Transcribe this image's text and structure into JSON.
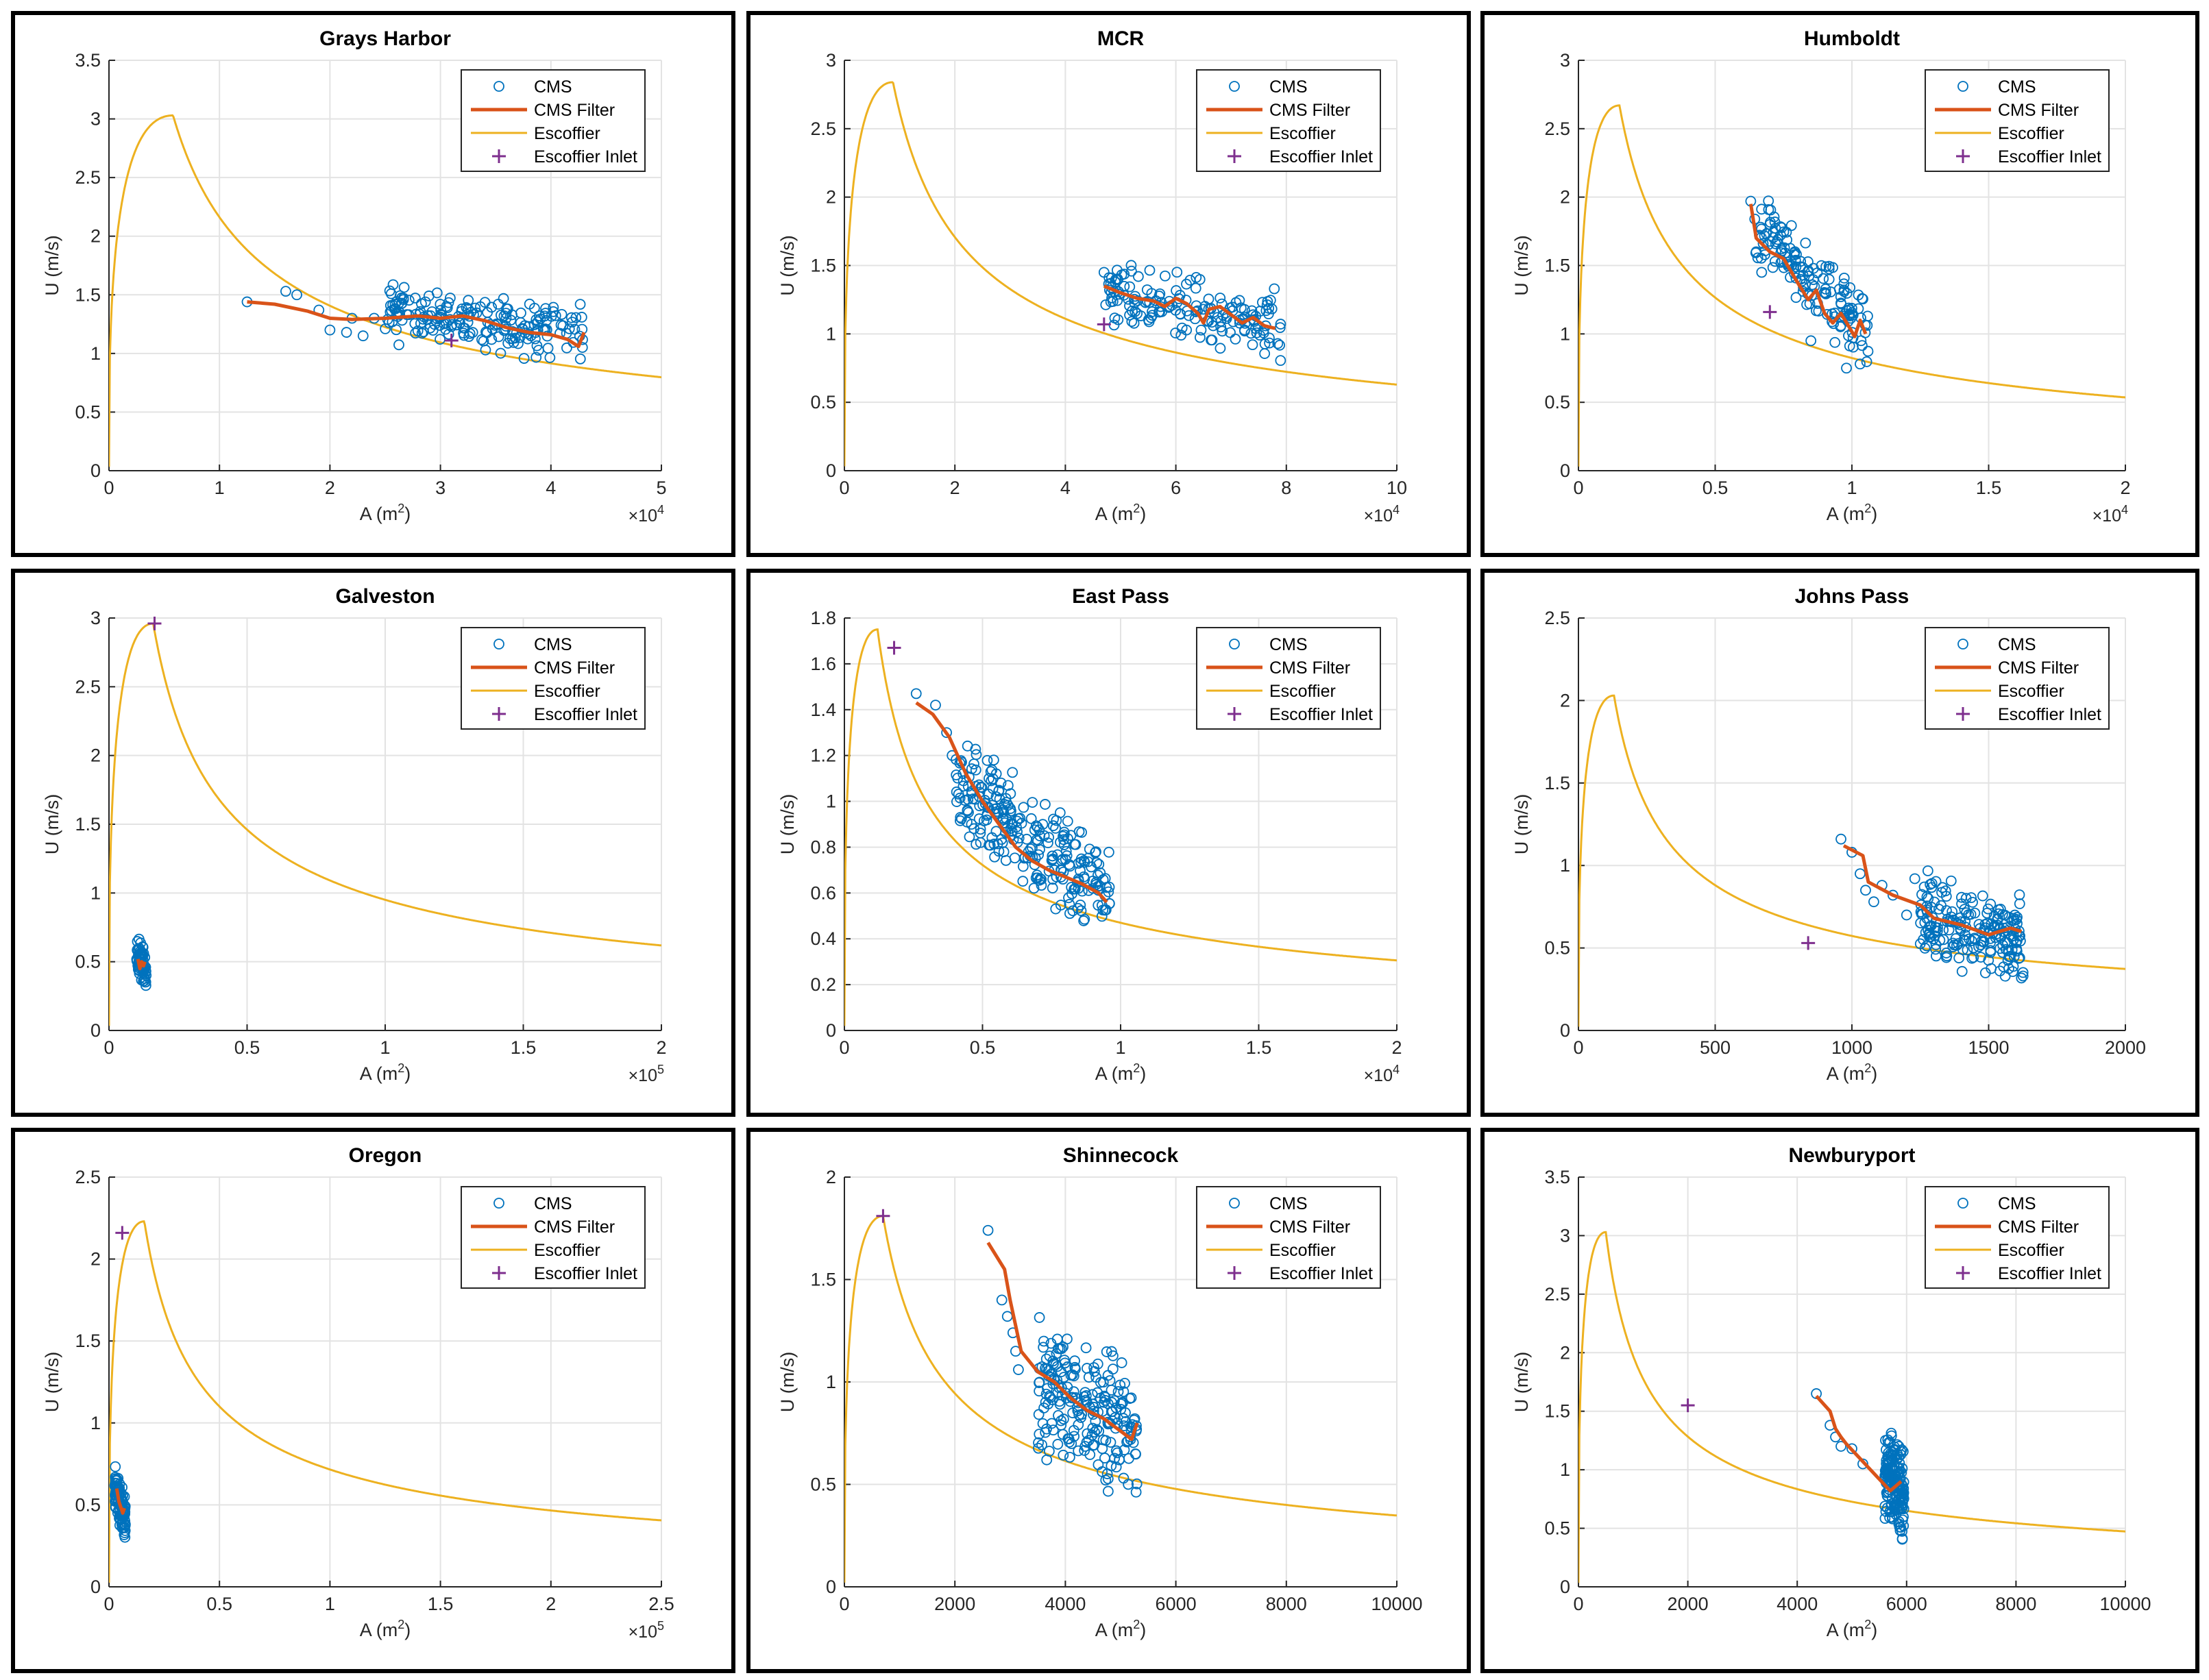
{
  "colors": {
    "cms": "#0072BD",
    "filter": "#D95319",
    "escoffier": "#EDB120",
    "inlet": "#7E2F8E",
    "grid": "#e3e3e3"
  },
  "legend": {
    "labels": [
      "CMS",
      "CMS Filter",
      "Escoffier",
      "Escoffier Inlet"
    ]
  },
  "chart_data": [
    {
      "id": "grays-harbor",
      "type": "scatter",
      "title": "Grays Harbor",
      "xlabel": "A (m",
      "xlabel_sup": "2",
      "ylabel": "U (m/s)",
      "x_exponent": "4",
      "xlim": [
        0,
        50000
      ],
      "ylim": [
        0,
        3.5
      ],
      "x_scale": 10000,
      "xticks": [
        0,
        10000,
        20000,
        30000,
        40000,
        50000
      ],
      "xtick_labels": [
        "0",
        "1",
        "2",
        "3",
        "4",
        "5"
      ],
      "yticks": [
        0,
        0.5,
        1,
        1.5,
        2,
        2.5,
        3,
        3.5
      ],
      "ytick_labels": [
        "0",
        "0.5",
        "1",
        "1.5",
        "2",
        "2.5",
        "3",
        "3.5"
      ],
      "legend_pos": "top-right",
      "escoffier": {
        "amax": 5800,
        "umax": 3.03
      },
      "cloud": {
        "x0": 25000,
        "x1": 43000,
        "y0": 1.35,
        "y1": 1.15,
        "spread": 0.28,
        "n": 200,
        "seed": 11
      },
      "extra_points": [
        [
          12500,
          1.44
        ],
        [
          16000,
          1.53
        ],
        [
          17000,
          1.5
        ],
        [
          19000,
          1.37
        ],
        [
          20000,
          1.2
        ],
        [
          21500,
          1.18
        ],
        [
          23000,
          1.15
        ],
        [
          24000,
          1.3
        ],
        [
          22000,
          1.3
        ]
      ],
      "filter": [
        [
          12500,
          1.44
        ],
        [
          15000,
          1.42
        ],
        [
          18000,
          1.36
        ],
        [
          20000,
          1.3
        ],
        [
          22000,
          1.29
        ],
        [
          25000,
          1.3
        ],
        [
          28000,
          1.32
        ],
        [
          30000,
          1.3
        ],
        [
          32000,
          1.32
        ],
        [
          34000,
          1.28
        ],
        [
          36000,
          1.22
        ],
        [
          38000,
          1.18
        ],
        [
          40000,
          1.16
        ],
        [
          41500,
          1.12
        ],
        [
          42500,
          1.06
        ],
        [
          43000,
          1.18
        ]
      ],
      "inlet": [
        31000,
        1.11
      ]
    },
    {
      "id": "mcr",
      "type": "scatter",
      "title": "MCR",
      "xlabel": "A (m",
      "xlabel_sup": "2",
      "ylabel": "U (m/s)",
      "x_exponent": "4",
      "xlim": [
        0,
        100000
      ],
      "ylim": [
        0,
        3
      ],
      "x_scale": 10000,
      "xticks": [
        0,
        20000,
        40000,
        60000,
        80000,
        100000
      ],
      "xtick_labels": [
        "0",
        "2",
        "4",
        "6",
        "8",
        "10"
      ],
      "yticks": [
        0,
        0.5,
        1,
        1.5,
        2,
        2.5,
        3
      ],
      "ytick_labels": [
        "0",
        "0.5",
        "1",
        "1.5",
        "2",
        "2.5",
        "3"
      ],
      "legend_pos": "top-right",
      "escoffier": {
        "amax": 8800,
        "umax": 2.84
      },
      "cloud": {
        "x0": 47000,
        "x1": 79000,
        "y0": 1.32,
        "y1": 1.06,
        "spread": 0.28,
        "n": 170,
        "seed": 23
      },
      "extra_points": [
        [
          47000,
          1.45
        ],
        [
          48000,
          1.32
        ]
      ],
      "filter": [
        [
          47000,
          1.35
        ],
        [
          50000,
          1.3
        ],
        [
          53000,
          1.26
        ],
        [
          56000,
          1.24
        ],
        [
          58000,
          1.2
        ],
        [
          60000,
          1.26
        ],
        [
          62000,
          1.22
        ],
        [
          64000,
          1.15
        ],
        [
          65000,
          1.08
        ],
        [
          66000,
          1.18
        ],
        [
          68000,
          1.2
        ],
        [
          70000,
          1.14
        ],
        [
          72000,
          1.08
        ],
        [
          74000,
          1.12
        ],
        [
          76000,
          1.06
        ],
        [
          78000,
          1.04
        ]
      ],
      "inlet": [
        47000,
        1.07
      ]
    },
    {
      "id": "humboldt",
      "type": "scatter",
      "title": "Humboldt",
      "xlabel": "A (m",
      "xlabel_sup": "2",
      "ylabel": "U (m/s)",
      "x_exponent": "4",
      "xlim": [
        0,
        20000
      ],
      "ylim": [
        0,
        3
      ],
      "x_scale": 10000,
      "xticks": [
        0,
        5000,
        10000,
        15000,
        20000
      ],
      "xtick_labels": [
        "0",
        "0.5",
        "1",
        "1.5",
        "2"
      ],
      "yticks": [
        0,
        0.5,
        1,
        1.5,
        2,
        2.5,
        3
      ],
      "ytick_labels": [
        "0",
        "0.5",
        "1",
        "1.5",
        "2",
        "2.5",
        "3"
      ],
      "legend_pos": "top-right",
      "escoffier": {
        "amax": 1500,
        "umax": 2.67
      },
      "cloud": {
        "x0": 6400,
        "x1": 10600,
        "y0": 1.8,
        "y1": 1.0,
        "spread": 0.32,
        "n": 150,
        "seed": 37
      },
      "extra_points": [
        [
          6300,
          1.97
        ],
        [
          6500,
          1.6
        ],
        [
          7000,
          1.8
        ],
        [
          6700,
          1.45
        ],
        [
          7800,
          1.5
        ],
        [
          8500,
          0.95
        ],
        [
          9800,
          0.75
        ],
        [
          10300,
          0.78
        ]
      ],
      "filter": [
        [
          6300,
          1.95
        ],
        [
          6500,
          1.7
        ],
        [
          7000,
          1.6
        ],
        [
          7500,
          1.55
        ],
        [
          8000,
          1.38
        ],
        [
          8400,
          1.25
        ],
        [
          8700,
          1.32
        ],
        [
          9000,
          1.15
        ],
        [
          9300,
          1.08
        ],
        [
          9600,
          1.15
        ],
        [
          9900,
          1.05
        ],
        [
          10100,
          0.98
        ],
        [
          10300,
          1.1
        ],
        [
          10500,
          1.0
        ]
      ],
      "inlet": [
        7000,
        1.16
      ]
    },
    {
      "id": "galveston",
      "type": "scatter",
      "title": "Galveston",
      "xlabel": "A (m",
      "xlabel_sup": "2",
      "ylabel": "U (m/s)",
      "x_exponent": "5",
      "xlim": [
        0,
        200000
      ],
      "ylim": [
        0,
        3
      ],
      "x_scale": 100000,
      "xticks": [
        0,
        50000,
        100000,
        150000,
        200000
      ],
      "xtick_labels": [
        "0",
        "0.5",
        "1",
        "1.5",
        "2"
      ],
      "yticks": [
        0,
        0.5,
        1,
        1.5,
        2,
        2.5,
        3
      ],
      "ytick_labels": [
        "0",
        "0.5",
        "1",
        "1.5",
        "2",
        "2.5",
        "3"
      ],
      "legend_pos": "top-right",
      "escoffier": {
        "amax": 16000,
        "umax": 2.96
      },
      "cloud": {
        "x0": 10000,
        "x1": 13500,
        "y0": 0.58,
        "y1": 0.42,
        "spread": 0.14,
        "n": 80,
        "seed": 41
      },
      "extra_points": [],
      "filter": [
        [
          10500,
          0.52
        ],
        [
          11200,
          0.45
        ],
        [
          11800,
          0.5
        ],
        [
          12500,
          0.47
        ],
        [
          13000,
          0.5
        ]
      ],
      "inlet": [
        16500,
        2.96
      ]
    },
    {
      "id": "east-pass",
      "type": "scatter",
      "title": "East Pass",
      "xlabel": "A (m",
      "xlabel_sup": "2",
      "ylabel": "U (m/s)",
      "x_exponent": "4",
      "xlim": [
        0,
        20000
      ],
      "ylim": [
        0,
        1.8
      ],
      "x_scale": 10000,
      "xticks": [
        0,
        5000,
        10000,
        15000,
        20000
      ],
      "xtick_labels": [
        "0",
        "0.5",
        "1",
        "1.5",
        "2"
      ],
      "yticks": [
        0,
        0.2,
        0.4,
        0.6,
        0.8,
        1,
        1.2,
        1.4,
        1.6,
        1.8
      ],
      "ytick_labels": [
        "0",
        "0.2",
        "0.4",
        "0.6",
        "0.8",
        "1",
        "1.2",
        "1.4",
        "1.6",
        "1.8"
      ],
      "legend_pos": "top-right",
      "escoffier": {
        "amax": 1200,
        "umax": 1.75
      },
      "cloud": {
        "x0": 4000,
        "x1": 9600,
        "y0": 1.1,
        "y1": 0.58,
        "spread": 0.26,
        "n": 260,
        "seed": 53
      },
      "extra_points": [
        [
          2600,
          1.47
        ],
        [
          3300,
          1.42
        ],
        [
          3700,
          1.3
        ],
        [
          3900,
          1.2
        ],
        [
          4200,
          0.93
        ],
        [
          4600,
          0.9
        ],
        [
          5300,
          1.13
        ],
        [
          5500,
          1.12
        ]
      ],
      "filter": [
        [
          2600,
          1.43
        ],
        [
          3200,
          1.38
        ],
        [
          3800,
          1.28
        ],
        [
          4400,
          1.12
        ],
        [
          5000,
          1.0
        ],
        [
          5600,
          0.9
        ],
        [
          6200,
          0.8
        ],
        [
          6800,
          0.74
        ],
        [
          7400,
          0.7
        ],
        [
          8000,
          0.67
        ],
        [
          8600,
          0.64
        ],
        [
          9200,
          0.6
        ],
        [
          9500,
          0.56
        ]
      ],
      "inlet": [
        1800,
        1.67
      ]
    },
    {
      "id": "johns-pass",
      "type": "scatter",
      "title": "Johns Pass",
      "xlabel": "A (m",
      "xlabel_sup": "2",
      "ylabel": "U (m/s)",
      "x_exponent": "",
      "xlim": [
        0,
        2000
      ],
      "ylim": [
        0,
        2.5
      ],
      "x_scale": 1,
      "xticks": [
        0,
        500,
        1000,
        1500,
        2000
      ],
      "xtick_labels": [
        "0",
        "500",
        "1000",
        "1500",
        "2000"
      ],
      "yticks": [
        0,
        0.5,
        1,
        1.5,
        2,
        2.5
      ],
      "ytick_labels": [
        "0",
        "0.5",
        "1",
        "1.5",
        "2",
        "2.5"
      ],
      "legend_pos": "top-right",
      "escoffier": {
        "amax": 130,
        "umax": 2.03
      },
      "cloud": {
        "x0": 1250,
        "x1": 1630,
        "y0": 0.7,
        "y1": 0.55,
        "spread": 0.3,
        "n": 200,
        "seed": 67
      },
      "extra_points": [
        [
          960,
          1.16
        ],
        [
          1000,
          1.08
        ],
        [
          1030,
          0.95
        ],
        [
          1050,
          0.85
        ],
        [
          1080,
          0.78
        ],
        [
          1110,
          0.88
        ],
        [
          1150,
          0.82
        ],
        [
          1200,
          0.7
        ],
        [
          1230,
          0.92
        ]
      ],
      "filter": [
        [
          970,
          1.12
        ],
        [
          1040,
          1.06
        ],
        [
          1060,
          0.9
        ],
        [
          1150,
          0.82
        ],
        [
          1250,
          0.76
        ],
        [
          1300,
          0.68
        ],
        [
          1400,
          0.64
        ],
        [
          1500,
          0.58
        ],
        [
          1580,
          0.62
        ],
        [
          1620,
          0.6
        ]
      ],
      "inlet": [
        840,
        0.53
      ]
    },
    {
      "id": "oregon",
      "type": "scatter",
      "title": "Oregon",
      "xlabel": "A (m",
      "xlabel_sup": "2",
      "ylabel": "U (m/s)",
      "x_exponent": "5",
      "xlim": [
        0,
        250000
      ],
      "ylim": [
        0,
        2.5
      ],
      "x_scale": 100000,
      "xticks": [
        0,
        50000,
        100000,
        150000,
        200000,
        250000
      ],
      "xtick_labels": [
        "0",
        "0.5",
        "1",
        "1.5",
        "2",
        "2.5"
      ],
      "yticks": [
        0,
        0.5,
        1,
        1.5,
        2,
        2.5
      ],
      "ytick_labels": [
        "0",
        "0.5",
        "1",
        "1.5",
        "2",
        "2.5"
      ],
      "legend_pos": "top-right",
      "escoffier": {
        "amax": 16000,
        "umax": 2.23
      },
      "cloud": {
        "x0": 2500,
        "x1": 7500,
        "y0": 0.6,
        "y1": 0.42,
        "spread": 0.16,
        "n": 90,
        "seed": 71
      },
      "extra_points": [
        [
          3000,
          0.66
        ]
      ],
      "filter": [
        [
          3500,
          0.6
        ],
        [
          4500,
          0.52
        ],
        [
          5500,
          0.48
        ],
        [
          6200,
          0.45
        ],
        [
          7000,
          0.48
        ]
      ],
      "inlet": [
        6000,
        2.16
      ]
    },
    {
      "id": "shinnecock",
      "type": "scatter",
      "title": "Shinnecock",
      "xlabel": "A (m",
      "xlabel_sup": "2",
      "ylabel": "U (m/s)",
      "x_exponent": "",
      "xlim": [
        0,
        10000
      ],
      "ylim": [
        0,
        2
      ],
      "x_scale": 1,
      "xticks": [
        0,
        2000,
        4000,
        6000,
        8000,
        10000
      ],
      "xtick_labels": [
        "0",
        "2000",
        "4000",
        "6000",
        "8000",
        "10000"
      ],
      "yticks": [
        0,
        0.5,
        1,
        1.5,
        2
      ],
      "ytick_labels": [
        "0",
        "0.5",
        "1",
        "1.5",
        "2"
      ],
      "legend_pos": "top-right",
      "escoffier": {
        "amax": 700,
        "umax": 1.81
      },
      "cloud": {
        "x0": 3500,
        "x1": 5300,
        "y0": 1.0,
        "y1": 0.75,
        "spread": 0.38,
        "n": 220,
        "seed": 83
      },
      "extra_points": [
        [
          2600,
          1.74
        ],
        [
          2850,
          1.4
        ],
        [
          2950,
          1.32
        ],
        [
          3050,
          1.24
        ],
        [
          3100,
          1.15
        ],
        [
          3150,
          1.06
        ]
      ],
      "filter": [
        [
          2600,
          1.68
        ],
        [
          2900,
          1.55
        ],
        [
          3000,
          1.4
        ],
        [
          3200,
          1.15
        ],
        [
          3500,
          1.05
        ],
        [
          3800,
          1.0
        ],
        [
          4100,
          0.92
        ],
        [
          4400,
          0.86
        ],
        [
          4700,
          0.82
        ],
        [
          5000,
          0.76
        ],
        [
          5200,
          0.72
        ],
        [
          5300,
          0.8
        ]
      ],
      "inlet": [
        700,
        1.81
      ]
    },
    {
      "id": "newburyport",
      "type": "scatter",
      "title": "Newburyport",
      "xlabel": "A (m",
      "xlabel_sup": "2",
      "ylabel": "U (m/s)",
      "x_exponent": "",
      "xlim": [
        0,
        10000
      ],
      "ylim": [
        0,
        3.5
      ],
      "x_scale": 1,
      "xticks": [
        0,
        2000,
        4000,
        6000,
        8000,
        10000
      ],
      "xtick_labels": [
        "0",
        "2000",
        "4000",
        "6000",
        "8000",
        "10000"
      ],
      "yticks": [
        0,
        0.5,
        1,
        1.5,
        2,
        2.5,
        3,
        3.5
      ],
      "ytick_labels": [
        "0",
        "0.5",
        "1",
        "1.5",
        "2",
        "2.5",
        "3",
        "3.5"
      ],
      "legend_pos": "top-right",
      "escoffier": {
        "amax": 500,
        "umax": 3.03
      },
      "cloud": {
        "x0": 5600,
        "x1": 5950,
        "y0": 1.0,
        "y1": 0.75,
        "spread": 0.42,
        "n": 170,
        "seed": 97
      },
      "extra_points": [
        [
          4350,
          1.65
        ],
        [
          4600,
          1.38
        ],
        [
          4700,
          1.28
        ],
        [
          4800,
          1.2
        ],
        [
          5000,
          1.18
        ],
        [
          5200,
          1.05
        ]
      ],
      "filter": [
        [
          4350,
          1.63
        ],
        [
          4600,
          1.5
        ],
        [
          4700,
          1.35
        ],
        [
          4800,
          1.28
        ],
        [
          4900,
          1.22
        ],
        [
          5100,
          1.12
        ],
        [
          5300,
          1.02
        ],
        [
          5500,
          0.92
        ],
        [
          5700,
          0.82
        ],
        [
          5800,
          0.86
        ],
        [
          5900,
          0.9
        ]
      ],
      "inlet": [
        2000,
        1.55
      ]
    }
  ]
}
